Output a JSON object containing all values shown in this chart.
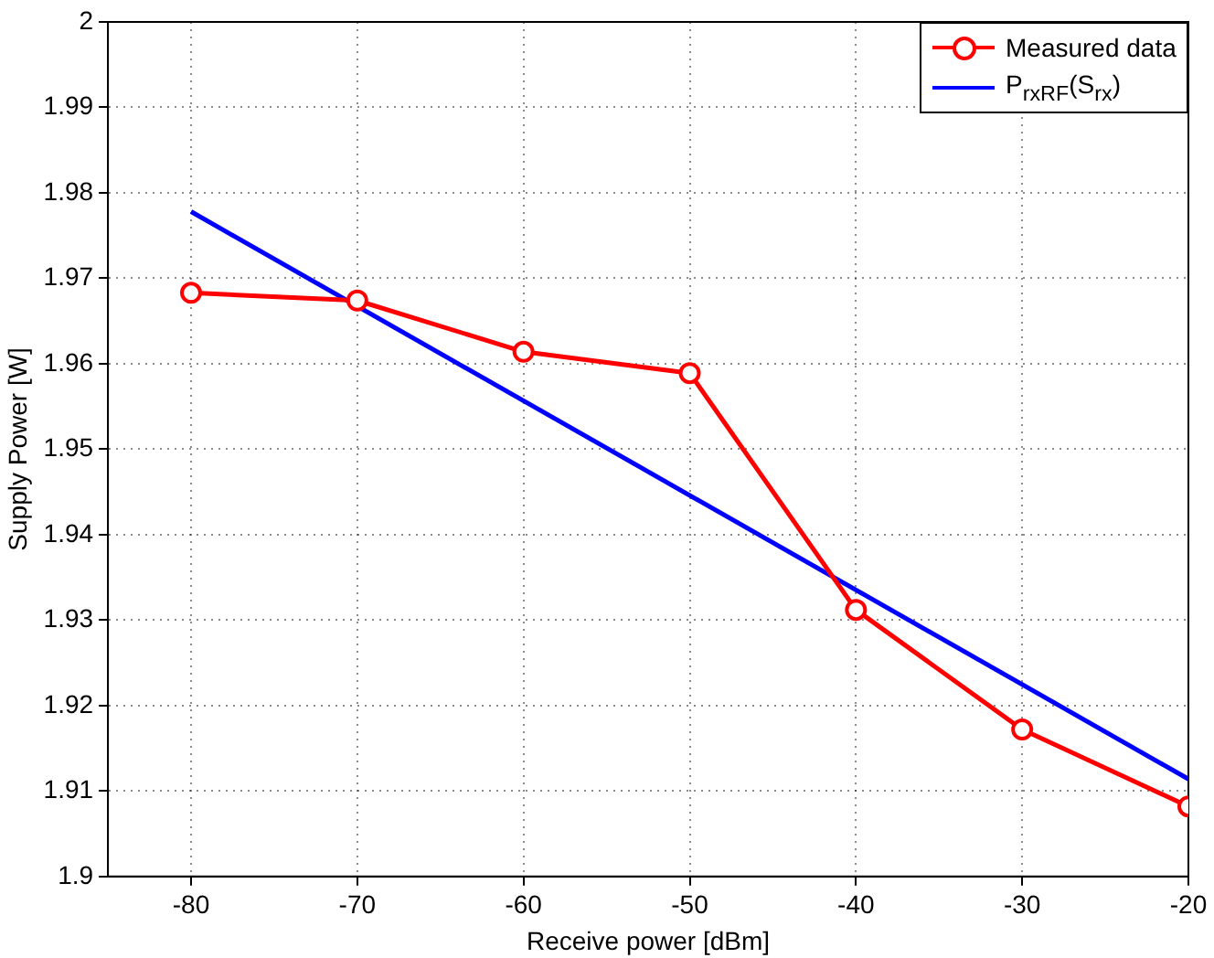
{
  "chart_data": {
    "type": "line",
    "xlabel": "Receive power [dBm]",
    "ylabel": "Supply Power [W]",
    "xlim": [
      -85,
      -20
    ],
    "xticks": [
      -80,
      -70,
      -60,
      -50,
      -40,
      -30,
      -20
    ],
    "ylim": [
      1.9,
      2
    ],
    "yticks": [
      1.9,
      1.91,
      1.92,
      1.93,
      1.94,
      1.95,
      1.96,
      1.97,
      1.98,
      1.99,
      2
    ],
    "grid": true,
    "legend": "top right",
    "line_style": "solid",
    "series": [
      {
        "name": "Measured data",
        "color": "#ff0000",
        "marker": "circle",
        "x": [
          -80,
          -70,
          -60,
          -50,
          -40,
          -30,
          -20
        ],
        "values": [
          1.9683,
          1.9674,
          1.9614,
          1.9589,
          1.9312,
          1.9172,
          1.9082
        ]
      },
      {
        "name": "P$_{rxRF}$(S$_{rx}$)",
        "color": "#0000ff",
        "marker": "none",
        "x": [
          -80,
          -20
        ],
        "values": [
          1.9778,
          1.9114
        ]
      }
    ]
  }
}
